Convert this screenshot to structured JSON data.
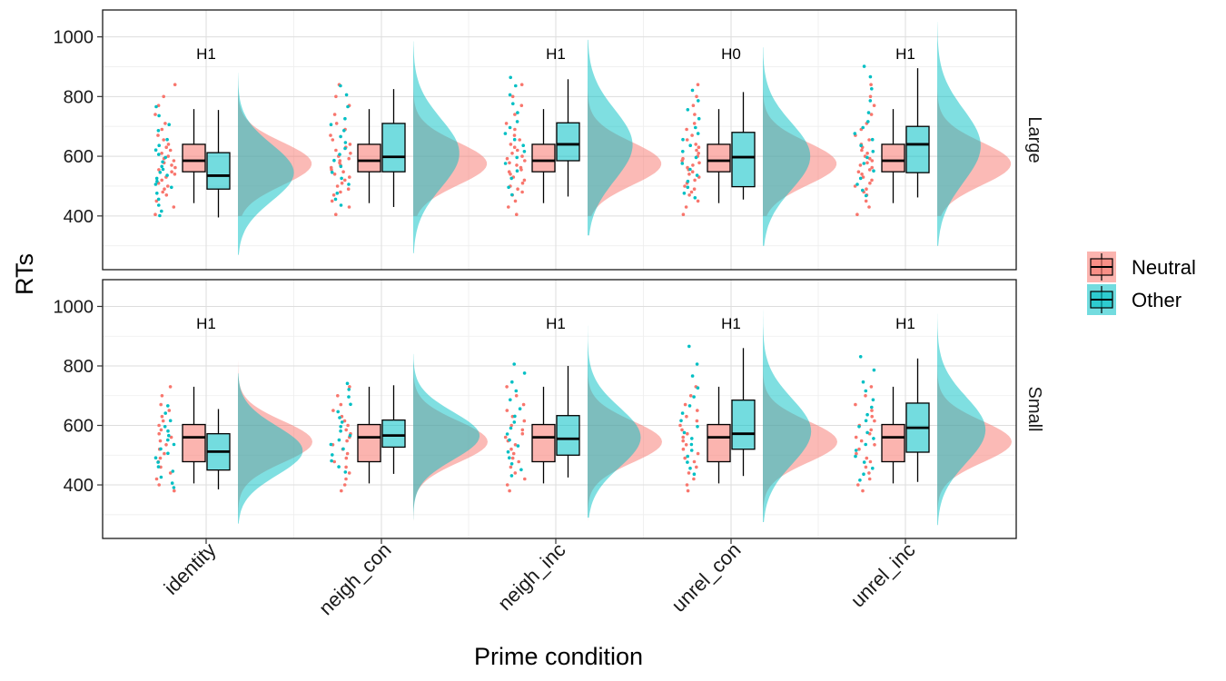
{
  "chart_data": {
    "type": "raincloud",
    "xlabel": "Prime condition",
    "ylabel": "RTs",
    "yticks": [
      400,
      600,
      800,
      1000
    ],
    "ylim": [
      220,
      1090
    ],
    "categories": [
      "identity",
      "neigh_con",
      "neigh_inc",
      "unrel_con",
      "unrel_inc"
    ],
    "legend": {
      "position": "right",
      "items": [
        {
          "name": "Neutral",
          "color": "#F8766D"
        },
        {
          "name": "Other",
          "color": "#00BFC4"
        }
      ]
    },
    "facets": [
      {
        "name": "Large",
        "hypotheses": [
          "H1",
          "",
          "H1",
          "H0",
          "H1"
        ],
        "neutral": {
          "box": {
            "q1": 548,
            "median": 585,
            "q3": 640,
            "lower": 443,
            "upper": 758
          },
          "density": {
            "mean": 575,
            "sd": 72,
            "min": 400,
            "max": 940
          },
          "points": [
            405,
            430,
            450,
            470,
            480,
            490,
            500,
            510,
            520,
            530,
            540,
            548,
            555,
            562,
            570,
            578,
            585,
            592,
            600,
            610,
            620,
            630,
            640,
            655,
            670,
            690,
            710,
            740,
            770,
            800,
            840
          ]
        },
        "groups": [
          {
            "box": {
              "q1": 490,
              "median": 535,
              "q3": 612,
              "lower": 395,
              "upper": 755
            },
            "density": {
              "mean": 545,
              "sd": 95,
              "min": 270,
              "max": 880
            },
            "points": [
              395,
              410,
              430,
              450,
              470,
              490,
              500,
              510,
              520,
              530,
              540,
              550,
              560,
              575,
              590,
              600,
              615,
              630,
              650,
              680,
              700,
              730,
              760
            ]
          },
          {
            "box": {
              "q1": 548,
              "median": 598,
              "q3": 710,
              "lower": 430,
              "upper": 825
            },
            "density": {
              "mean": 610,
              "sd": 115,
              "min": 275,
              "max": 985
            },
            "points": [
              430,
              450,
              470,
              500,
              520,
              540,
              560,
              580,
              600,
              620,
              640,
              660,
              680,
              700,
              720,
              760,
              800,
              830
            ]
          },
          {
            "box": {
              "q1": 585,
              "median": 640,
              "q3": 712,
              "lower": 465,
              "upper": 858
            },
            "density": {
              "mean": 638,
              "sd": 118,
              "min": 335,
              "max": 990
            },
            "points": [
              465,
              490,
              520,
              545,
              570,
              590,
              610,
              630,
              650,
              670,
              690,
              710,
              740,
              770,
              800,
              830,
              858
            ]
          },
          {
            "box": {
              "q1": 498,
              "median": 597,
              "q3": 680,
              "lower": 455,
              "upper": 815
            },
            "density": {
              "mean": 600,
              "sd": 112,
              "min": 300,
              "max": 965
            },
            "points": [
              455,
              470,
              490,
              510,
              530,
              550,
              570,
              590,
              610,
              630,
              650,
              670,
              690,
              720,
              750,
              780,
              815
            ]
          },
          {
            "box": {
              "q1": 545,
              "median": 640,
              "q3": 700,
              "lower": 462,
              "upper": 895
            },
            "density": {
              "mean": 635,
              "sd": 122,
              "min": 300,
              "max": 1050
            },
            "points": [
              462,
              480,
              500,
              520,
              545,
              570,
              590,
              610,
              630,
              650,
              670,
              690,
              710,
              740,
              780,
              820,
              860,
              895
            ]
          }
        ]
      },
      {
        "name": "Small",
        "hypotheses": [
          "H1",
          "",
          "H1",
          "H1",
          "H1"
        ],
        "neutral": {
          "box": {
            "q1": 478,
            "median": 560,
            "q3": 603,
            "lower": 405,
            "upper": 730
          },
          "density": {
            "mean": 545,
            "sd": 70,
            "min": 280,
            "max": 848
          },
          "points": [
            380,
            400,
            420,
            440,
            460,
            478,
            490,
            505,
            520,
            535,
            548,
            560,
            572,
            585,
            600,
            615,
            630,
            650,
            670,
            700,
            730
          ]
        },
        "groups": [
          {
            "box": {
              "q1": 450,
              "median": 512,
              "q3": 572,
              "lower": 385,
              "upper": 655
            },
            "density": {
              "mean": 515,
              "sd": 82,
              "min": 270,
              "max": 775
            },
            "points": [
              385,
              400,
              420,
              440,
              455,
              470,
              485,
              500,
              515,
              530,
              545,
              560,
              575,
              590,
              610,
              635,
              660
            ]
          },
          {
            "box": {
              "q1": 527,
              "median": 566,
              "q3": 618,
              "lower": 437,
              "upper": 735
            },
            "density": {
              "mean": 565,
              "sd": 80,
              "min": 285,
              "max": 840
            },
            "points": [
              437,
              455,
              475,
              495,
              515,
              530,
              545,
              560,
              575,
              590,
              605,
              620,
              640,
              665,
              690,
              715,
              735
            ]
          },
          {
            "box": {
              "q1": 500,
              "median": 555,
              "q3": 633,
              "lower": 425,
              "upper": 800
            },
            "density": {
              "mean": 560,
              "sd": 100,
              "min": 290,
              "max": 935
            },
            "points": [
              425,
              445,
              465,
              485,
              505,
              525,
              545,
              565,
              585,
              605,
              625,
              650,
              680,
              710,
              740,
              770,
              800
            ]
          },
          {
            "box": {
              "q1": 520,
              "median": 572,
              "q3": 685,
              "lower": 430,
              "upper": 860
            },
            "density": {
              "mean": 580,
              "sd": 110,
              "min": 275,
              "max": 1005
            },
            "points": [
              430,
              450,
              470,
              490,
              510,
              530,
              550,
              570,
              590,
              610,
              635,
              660,
              690,
              720,
              760,
              800,
              860
            ]
          },
          {
            "box": {
              "q1": 510,
              "median": 592,
              "q3": 675,
              "lower": 410,
              "upper": 825
            },
            "density": {
              "mean": 585,
              "sd": 110,
              "min": 265,
              "max": 975
            },
            "points": [
              410,
              430,
              450,
              470,
              490,
              510,
              530,
              550,
              570,
              590,
              610,
              630,
              655,
              680,
              710,
              740,
              780,
              825
            ]
          }
        ]
      }
    ]
  }
}
